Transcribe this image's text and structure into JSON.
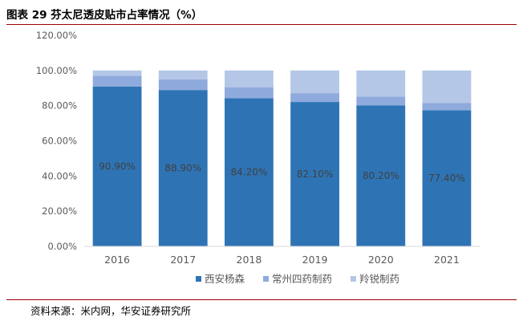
{
  "header": {
    "title": "图表 29 芬太尼透皮贴市占率情况（%）"
  },
  "footer": {
    "source": "资料来源：米内网，华安证券研究所"
  },
  "chart_data": {
    "type": "bar",
    "stacked": true,
    "title": "",
    "xlabel": "",
    "ylabel": "",
    "categories": [
      "2016",
      "2017",
      "2018",
      "2019",
      "2020",
      "2021"
    ],
    "ylim": [
      0,
      120
    ],
    "yticks": [
      "0.00%",
      "20.00%",
      "40.00%",
      "60.00%",
      "80.00%",
      "100.00%",
      "120.00%"
    ],
    "grid": false,
    "legend": "bottom",
    "series": [
      {
        "name": "西安杨森",
        "color": "#2e74b5",
        "values": [
          90.9,
          88.9,
          84.2,
          82.1,
          80.2,
          77.4
        ],
        "labels": [
          "90.90%",
          "88.90%",
          "84.20%",
          "82.10%",
          "80.20%",
          "77.40%"
        ]
      },
      {
        "name": "常州四药制药",
        "color": "#8faadc",
        "values": [
          6.1,
          6.1,
          6.3,
          5.0,
          5.0,
          4.2
        ]
      },
      {
        "name": "羚锐制药",
        "color": "#b4c7e7",
        "values": [
          3.0,
          5.0,
          9.5,
          12.9,
          14.8,
          18.4
        ]
      }
    ]
  }
}
